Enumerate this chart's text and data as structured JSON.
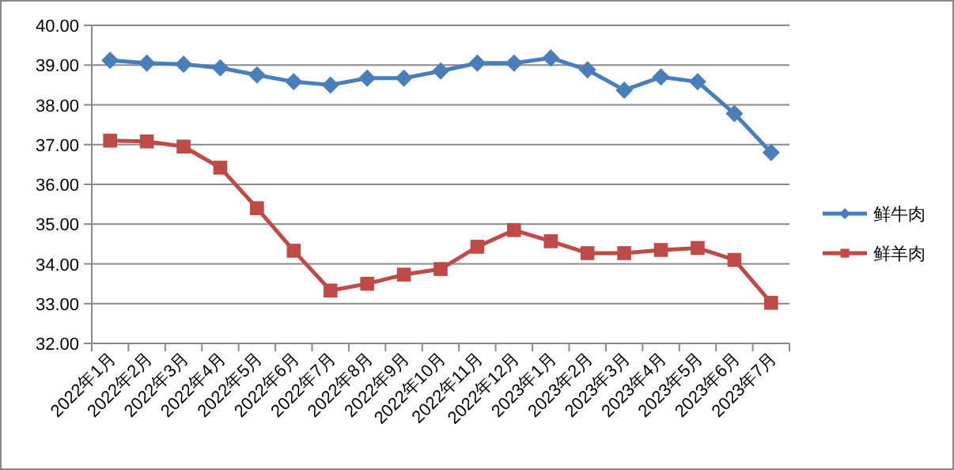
{
  "chart_data": {
    "type": "line",
    "categories": [
      "2022年1月",
      "2022年2月",
      "2022年3月",
      "2022年4月",
      "2022年5月",
      "2022年6月",
      "2022年7月",
      "2022年8月",
      "2022年9月",
      "2022年10月",
      "2022年11月",
      "2022年12月",
      "2023年1月",
      "2023年2月",
      "2023年3月",
      "2023年4月",
      "2023年5月",
      "2023年6月",
      "2023年7月"
    ],
    "series": [
      {
        "name": "鲜牛肉",
        "color": "#4a7ebb",
        "marker": "diamond",
        "values": [
          39.12,
          39.05,
          39.02,
          38.93,
          38.75,
          38.58,
          38.5,
          38.67,
          38.67,
          38.85,
          39.05,
          39.05,
          39.18,
          38.88,
          38.37,
          38.7,
          38.58,
          37.78,
          36.8
        ]
      },
      {
        "name": "鲜羊肉",
        "color": "#be4b48",
        "marker": "square",
        "values": [
          37.1,
          37.08,
          36.95,
          36.42,
          35.4,
          34.33,
          33.33,
          33.5,
          33.73,
          33.87,
          34.43,
          34.85,
          34.57,
          34.27,
          34.27,
          34.35,
          34.4,
          34.1,
          33.02
        ]
      }
    ],
    "ylim": [
      32,
      40
    ],
    "yticks": [
      {
        "value": 32,
        "label": "32.00"
      },
      {
        "value": 33,
        "label": "33.00"
      },
      {
        "value": 34,
        "label": "34.00"
      },
      {
        "value": 35,
        "label": "35.00"
      },
      {
        "value": 36,
        "label": "36.00"
      },
      {
        "value": 37,
        "label": "37.00"
      },
      {
        "value": 38,
        "label": "38.00"
      },
      {
        "value": 39,
        "label": "39.00"
      },
      {
        "value": 40,
        "label": "40.00"
      }
    ],
    "grid": "y",
    "legend": "right",
    "line_style": "solid"
  }
}
